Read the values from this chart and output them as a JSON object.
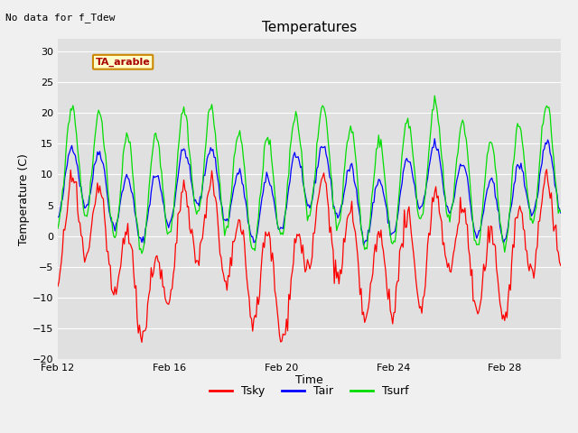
{
  "title": "Temperatures",
  "subtitle": "No data for f_Tdew",
  "xlabel": "Time",
  "ylabel": "Temperature (C)",
  "ylim": [
    -20,
    32
  ],
  "xlim": [
    0,
    18
  ],
  "xtick_labels": [
    "Feb 12",
    "Feb 16",
    "Feb 20",
    "Feb 24",
    "Feb 28"
  ],
  "xtick_positions": [
    0,
    4,
    8,
    12,
    16
  ],
  "ytick_values": [
    -20,
    -15,
    -10,
    -5,
    0,
    5,
    10,
    15,
    20,
    25,
    30
  ],
  "fig_bg_color": "#f0f0f0",
  "plot_bg_color": "#e0e0e0",
  "grid_color": "#ffffff",
  "tsky_color": "#ff0000",
  "tair_color": "#0000ff",
  "tsurf_color": "#00dd00",
  "legend_label_box": "TA_arable",
  "legend_box_bg": "#ffffcc",
  "legend_box_border": "#cc8800",
  "legend_box_text": "#aa0000",
  "title_fontsize": 11,
  "axis_fontsize": 9,
  "tick_fontsize": 8
}
